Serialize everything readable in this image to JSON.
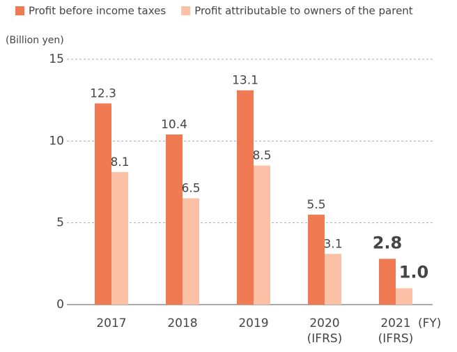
{
  "chart_data": {
    "type": "bar",
    "y_label": "(Billion yen)",
    "x_label": "(FY)",
    "categories": [
      "2017",
      "2018",
      "2019",
      "2020 (IFRS)",
      "2021 (IFRS)"
    ],
    "series": [
      {
        "name": "Profit before income taxes",
        "color": "#f07a52",
        "values": [
          12.3,
          10.4,
          13.1,
          5.5,
          2.8
        ]
      },
      {
        "name": "Profit attributable to owners of the parent",
        "color": "#fcc0a6",
        "values": [
          8.1,
          6.5,
          8.5,
          3.1,
          1.0
        ],
        "value_labels": [
          "8.1",
          "6.5",
          "8.5",
          "3.1",
          "1.0"
        ]
      }
    ],
    "ylim": [
      0,
      15
    ],
    "yticks": [
      0,
      5,
      10,
      15
    ],
    "grid": true
  }
}
